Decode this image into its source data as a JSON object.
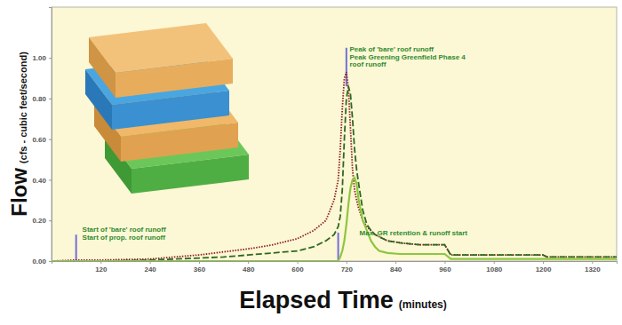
{
  "chart_data": {
    "type": "line",
    "y_label": "Flow",
    "y_label_units": "(cfs - cubic feet/second)",
    "x_label": "Elapsed Time",
    "x_label_units": "(minutes)",
    "grid": false,
    "xlim": [
      0,
      1380
    ],
    "xticks": [
      120,
      240,
      360,
      480,
      600,
      720,
      840,
      960,
      1080,
      1200,
      1320
    ],
    "ylim": [
      0,
      1.25
    ],
    "yticks": [
      {
        "value": 0,
        "label": "0.00"
      },
      {
        "value": 0.2,
        "label": "0.20"
      },
      {
        "value": 0.4,
        "label": "0.40"
      },
      {
        "value": 0.6,
        "label": "0.60"
      },
      {
        "value": 0.8,
        "label": "0.80"
      },
      {
        "value": 1,
        "label": "1.00"
      }
    ],
    "x": [
      0,
      60,
      120,
      240,
      300,
      360,
      420,
      480,
      540,
      600,
      640,
      670,
      690,
      700,
      705,
      710,
      715,
      720,
      725,
      730,
      735,
      740,
      745,
      750,
      760,
      770,
      780,
      790,
      800,
      820,
      850,
      900,
      960,
      975,
      1000,
      1100,
      1200,
      1210,
      1300,
      1380
    ],
    "series": [
      {
        "color": "#8b1f1f",
        "line_style": "dotted",
        "values": [
          0,
          0.005,
          0.005,
          0.01,
          0.02,
          0.03,
          0.045,
          0.06,
          0.08,
          0.11,
          0.15,
          0.2,
          0.3,
          0.4,
          0.55,
          0.75,
          0.9,
          0.93,
          0.85,
          0.65,
          0.45,
          0.35,
          0.3,
          0.26,
          0.2,
          0.17,
          0.15,
          0.13,
          0.12,
          0.1,
          0.09,
          0.08,
          0.08,
          0.03,
          0.03,
          0.03,
          0.03,
          0.02,
          0.02,
          0.02
        ]
      },
      {
        "color": "#2d6a1f",
        "line_style": "dashed",
        "values": [
          0,
          0,
          0,
          0.005,
          0.01,
          0.015,
          0.02,
          0.03,
          0.04,
          0.05,
          0.07,
          0.1,
          0.13,
          0.17,
          0.22,
          0.35,
          0.6,
          0.8,
          0.86,
          0.82,
          0.7,
          0.55,
          0.45,
          0.38,
          0.25,
          0.18,
          0.15,
          0.13,
          0.12,
          0.1,
          0.09,
          0.08,
          0.08,
          0.03,
          0.03,
          0.03,
          0.03,
          0.02,
          0.02,
          0.02
        ]
      },
      {
        "color": "#8dc63f",
        "line_style": "solid",
        "values": [
          0,
          0,
          0,
          0,
          0,
          0,
          0,
          0,
          0,
          0,
          0,
          0,
          0,
          0,
          0.02,
          0.05,
          0.1,
          0.18,
          0.28,
          0.36,
          0.4,
          0.41,
          0.38,
          0.3,
          0.2,
          0.15,
          0.1,
          0.07,
          0.05,
          0.04,
          0.035,
          0.035,
          0.035,
          0.01,
          0.01,
          0.01,
          0.01,
          0.01,
          0.01,
          0.01
        ]
      }
    ],
    "reference_lines": [
      {
        "x": 60,
        "y0": 0,
        "y1": 0.13
      },
      {
        "x": 720,
        "y0": 0.86,
        "y1": 1.05
      },
      {
        "x": 700,
        "y0": 0,
        "y1": 0.14
      }
    ],
    "annotations": [
      {
        "text": "Start of 'bare' roof runoff",
        "x": 75,
        "y": 0.145
      },
      {
        "text": "Start of prop. roof runoff",
        "x": 75,
        "y": 0.105
      },
      {
        "text": "Peak of 'bare' roof runoff",
        "x": 728,
        "y": 1.03
      },
      {
        "text": "Peak Greening Greenfield Phase 4",
        "x": 728,
        "y": 0.99
      },
      {
        "text": "roof runoff",
        "x": 728,
        "y": 0.955
      },
      {
        "text": "Max. GR retention & runoff start",
        "x": 752,
        "y": 0.125
      }
    ]
  }
}
